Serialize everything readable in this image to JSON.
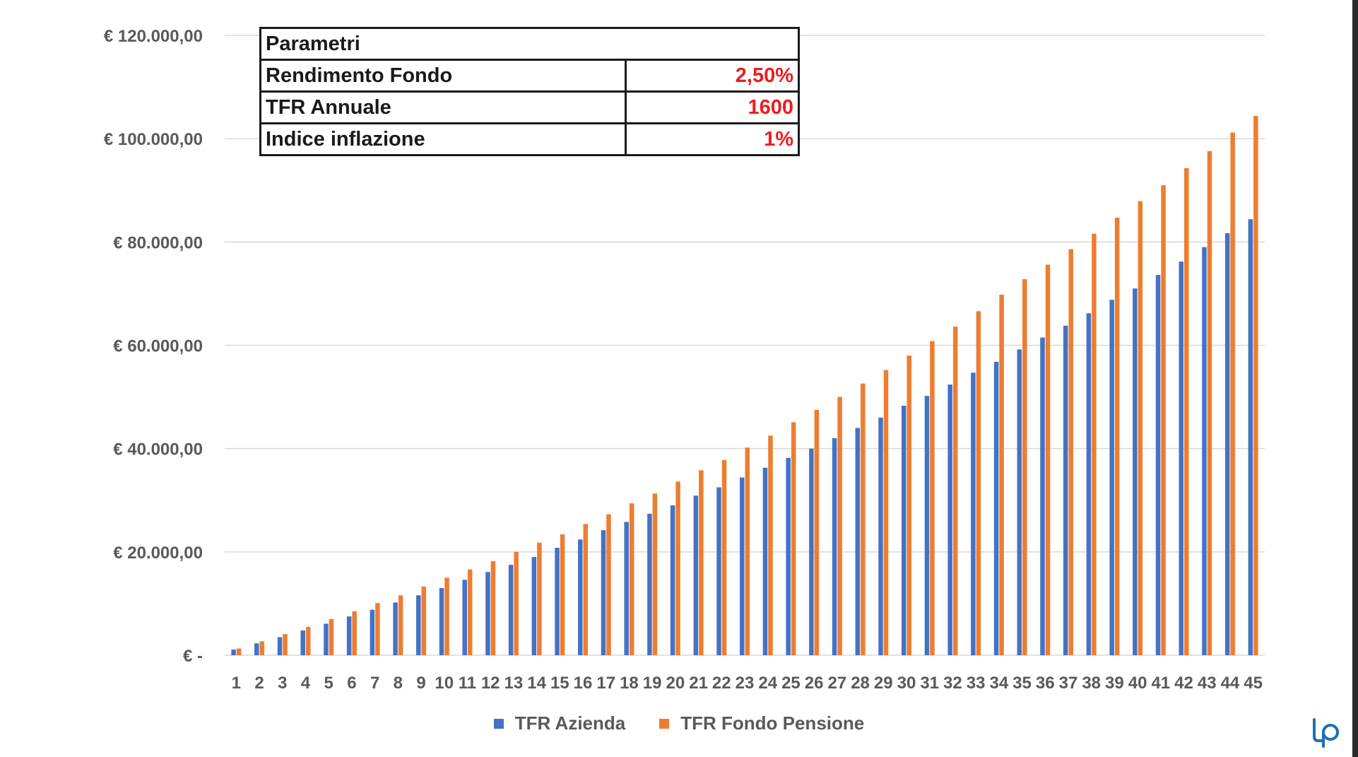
{
  "colors": {
    "azienda": "#4472C4",
    "fondo": "#ED7D31",
    "grid": "#d9d9d9",
    "param_value": "#ee1c1c",
    "logo": "#1e6fb3"
  },
  "parameters": {
    "header": "Parametri",
    "rows": [
      {
        "label": "Rendimento Fondo",
        "value": "2,50%"
      },
      {
        "label": "TFR Annuale",
        "value": "1600"
      },
      {
        "label": "Indice inflazione",
        "value": "1%"
      }
    ]
  },
  "logo": {
    "icon": "lp-logo-icon"
  },
  "chart_data": {
    "type": "bar",
    "title": "",
    "xlabel": "",
    "ylabel": "",
    "ylim": [
      0,
      120000
    ],
    "yticks": [
      {
        "value": 0,
        "label": "€ -"
      },
      {
        "value": 20000,
        "label": "€ 20.000,00"
      },
      {
        "value": 40000,
        "label": "€ 40.000,00"
      },
      {
        "value": 60000,
        "label": "€ 60.000,00"
      },
      {
        "value": 80000,
        "label": "€ 80.000,00"
      },
      {
        "value": 100000,
        "label": "€ 100.000,00"
      },
      {
        "value": 120000,
        "label": "€ 120.000,00"
      }
    ],
    "grid": true,
    "legend_position": "bottom",
    "categories": [
      "1",
      "2",
      "3",
      "4",
      "5",
      "6",
      "7",
      "8",
      "9",
      "10",
      "11",
      "12",
      "13",
      "14",
      "15",
      "16",
      "17",
      "18",
      "19",
      "20",
      "21",
      "22",
      "23",
      "24",
      "25",
      "26",
      "27",
      "28",
      "29",
      "30",
      "31",
      "32",
      "33",
      "34",
      "35",
      "36",
      "37",
      "38",
      "39",
      "40",
      "41",
      "42",
      "43",
      "44",
      "45"
    ],
    "series": [
      {
        "name": "TFR Azienda",
        "values": [
          1100,
          2300,
          3500,
          4800,
          6100,
          7500,
          8800,
          10200,
          11600,
          13000,
          14600,
          16100,
          17500,
          19000,
          20800,
          22400,
          24200,
          25800,
          27400,
          29000,
          30900,
          32500,
          34400,
          36300,
          38200,
          40000,
          42000,
          44000,
          46000,
          48300,
          50200,
          52400,
          54700,
          56800,
          59200,
          61500,
          63800,
          66200,
          68800,
          71000,
          73600,
          76200,
          79000,
          81700,
          84400
        ]
      },
      {
        "name": "TFR Fondo Pensione",
        "values": [
          1300,
          2700,
          4100,
          5500,
          7000,
          8500,
          10100,
          11600,
          13300,
          15000,
          16600,
          18200,
          20000,
          21800,
          23400,
          25400,
          27300,
          29400,
          31300,
          33600,
          35800,
          37800,
          40200,
          42500,
          45100,
          47500,
          50000,
          52600,
          55200,
          58000,
          60800,
          63600,
          66600,
          69800,
          72800,
          75600,
          78600,
          81600,
          84700,
          87900,
          91000,
          94300,
          97600,
          101200,
          104400
        ]
      }
    ]
  }
}
